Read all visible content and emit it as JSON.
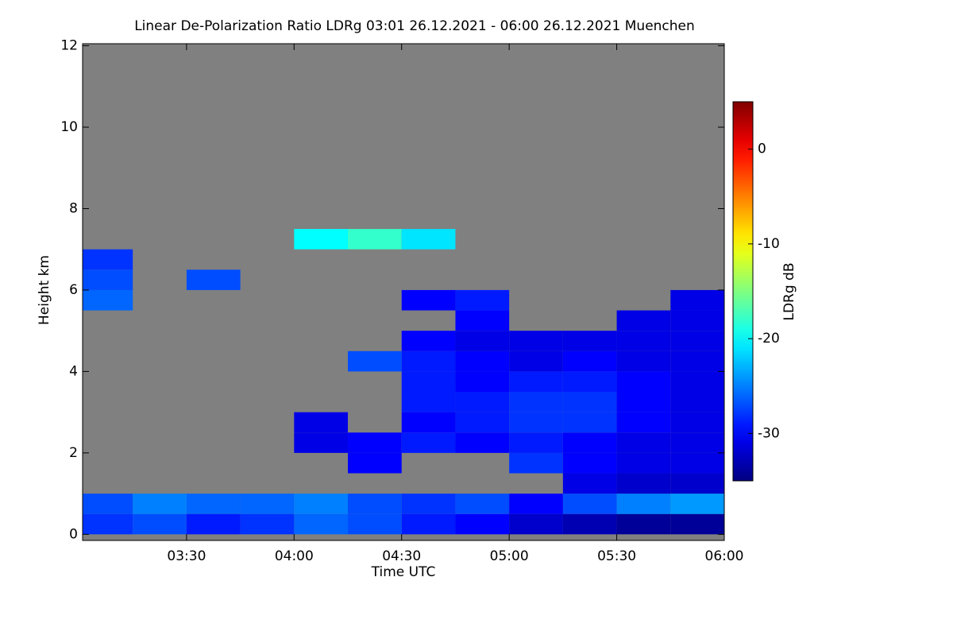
{
  "chart_data": {
    "type": "heatmap",
    "title": "Linear De-Polarization Ratio LDRg   03:01 26.12.2021 - 06:00 26.12.2021 Muenchen",
    "xlabel": "Time UTC",
    "ylabel": "Height km",
    "colorbar_label": "LDRg dB",
    "x": [
      3.125,
      3.375,
      3.625,
      3.875,
      4.125,
      4.375,
      4.625,
      4.875,
      5.125,
      5.375,
      5.625,
      5.875
    ],
    "y": [
      0.25,
      0.75,
      1.25,
      1.75,
      2.25,
      2.75,
      3.25,
      3.75,
      4.25,
      4.75,
      5.25,
      5.75,
      6.25,
      6.75,
      7.25
    ],
    "z": [
      [
        -28,
        -27,
        -29,
        -28,
        -26,
        -27,
        -29,
        -30,
        -32,
        -33,
        -34,
        -34
      ],
      [
        -27,
        -25,
        -26,
        -26,
        -25,
        -27,
        -28,
        -27,
        -30,
        -27,
        -25,
        -24
      ],
      [
        null,
        null,
        null,
        null,
        null,
        null,
        null,
        null,
        null,
        -31,
        -32,
        -32
      ],
      [
        null,
        null,
        null,
        null,
        null,
        -30,
        null,
        null,
        -28,
        -30,
        -31,
        -31
      ],
      [
        null,
        null,
        null,
        null,
        -31,
        -30,
        -29,
        -30,
        -29,
        -30,
        -31,
        -31
      ],
      [
        null,
        null,
        null,
        null,
        -31,
        null,
        -30,
        -29,
        -28,
        -28,
        -30,
        -31
      ],
      [
        null,
        null,
        null,
        null,
        null,
        null,
        -29,
        -29,
        -28,
        -28,
        -30,
        -31
      ],
      [
        null,
        null,
        null,
        null,
        null,
        null,
        -29,
        -30,
        -29,
        -29,
        -30,
        -31
      ],
      [
        null,
        null,
        null,
        null,
        null,
        -27,
        -29,
        -30,
        -31,
        -30,
        -31,
        -31
      ],
      [
        null,
        null,
        null,
        null,
        null,
        null,
        -30,
        -31,
        -31,
        -31,
        -31,
        -31
      ],
      [
        null,
        null,
        null,
        null,
        null,
        null,
        null,
        -30,
        null,
        null,
        -31,
        -31
      ],
      [
        -26,
        null,
        null,
        null,
        null,
        null,
        -30,
        -29,
        null,
        null,
        null,
        -31
      ],
      [
        -27,
        null,
        -27,
        null,
        null,
        null,
        null,
        null,
        null,
        null,
        null,
        null
      ],
      [
        -28,
        null,
        null,
        null,
        null,
        null,
        null,
        null,
        null,
        null,
        null,
        null
      ],
      [
        null,
        null,
        null,
        null,
        -20,
        -18,
        -21,
        null,
        null,
        null,
        null,
        null
      ]
    ],
    "xlim": [
      3.0167,
      6.0
    ],
    "xticks": [
      {
        "value": 3.5,
        "label": "03:30"
      },
      {
        "value": 4.0,
        "label": "04:00"
      },
      {
        "value": 4.5,
        "label": "04:30"
      },
      {
        "value": 5.0,
        "label": "05:00"
      },
      {
        "value": 5.5,
        "label": "05:30"
      },
      {
        "value": 6.0,
        "label": "06:00"
      }
    ],
    "ylim": [
      -0.15,
      12.05
    ],
    "yticks": [
      0,
      2,
      4,
      6,
      8,
      10,
      12
    ],
    "zlim": [
      -35,
      5
    ],
    "zticks": [
      0,
      -10,
      -20,
      -30
    ],
    "colormap": "jet",
    "missing_color": "#808080"
  }
}
